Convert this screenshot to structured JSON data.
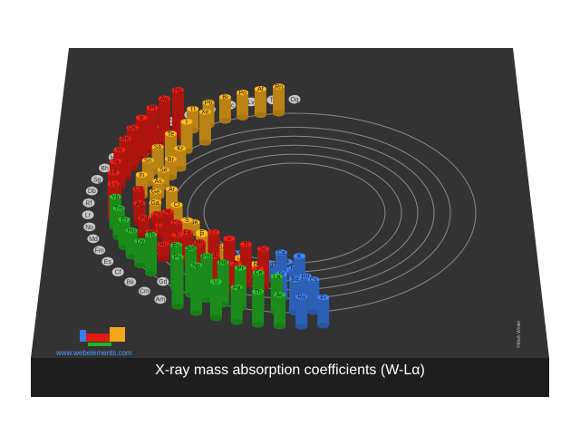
{
  "title": "X-ray mass absorption coefficients (W-Lα)",
  "site_url": "www.webelements.com",
  "copyright": "©Mark Winter",
  "chart_data": {
    "type": "bar",
    "note_units": "relative bar height 0-1 (no axis printed)",
    "colors": {
      "s": "#3a7be8",
      "p": "#f0a81a",
      "d": "#e01b12",
      "f": "#22b322",
      "empty": "#c8c8c8",
      "board": "#333333"
    },
    "elements": [
      {
        "symbol": "H",
        "block": "s",
        "value": 0.02
      },
      {
        "symbol": "He",
        "block": "s",
        "value": 0.03
      },
      {
        "symbol": "Li",
        "block": "s",
        "value": 0.04
      },
      {
        "symbol": "Be",
        "block": "s",
        "value": 0.05
      },
      {
        "symbol": "B",
        "block": "p",
        "value": 0.07
      },
      {
        "symbol": "C",
        "block": "p",
        "value": 0.1
      },
      {
        "symbol": "N",
        "block": "p",
        "value": 0.12
      },
      {
        "symbol": "O",
        "block": "p",
        "value": 0.15
      },
      {
        "symbol": "F",
        "block": "p",
        "value": 0.18
      },
      {
        "symbol": "Ne",
        "block": "p",
        "value": 0.2
      },
      {
        "symbol": "Na",
        "block": "s",
        "value": 0.24
      },
      {
        "symbol": "Mg",
        "block": "s",
        "value": 0.28
      },
      {
        "symbol": "Al",
        "block": "p",
        "value": 0.33
      },
      {
        "symbol": "Si",
        "block": "p",
        "value": 0.38
      },
      {
        "symbol": "P",
        "block": "p",
        "value": 0.43
      },
      {
        "symbol": "S",
        "block": "p",
        "value": 0.48
      },
      {
        "symbol": "Cl",
        "block": "p",
        "value": 0.52
      },
      {
        "symbol": "Ar",
        "block": "p",
        "value": 0.55
      },
      {
        "symbol": "K",
        "block": "s",
        "value": 0.62
      },
      {
        "symbol": "Ca",
        "block": "s",
        "value": 0.68
      },
      {
        "symbol": "Sc",
        "block": "d",
        "value": 0.72
      },
      {
        "symbol": "Ti",
        "block": "d",
        "value": 0.75
      },
      {
        "symbol": "V",
        "block": "d",
        "value": 0.78
      },
      {
        "symbol": "Cr",
        "block": "d",
        "value": 0.8
      },
      {
        "symbol": "Mn",
        "block": "d",
        "value": 0.5
      },
      {
        "symbol": "Fe",
        "block": "d",
        "value": 0.55
      },
      {
        "symbol": "Co",
        "block": "d",
        "value": 0.58
      },
      {
        "symbol": "Ni",
        "block": "d",
        "value": 0.62
      },
      {
        "symbol": "Cu",
        "block": "d",
        "value": 0.2
      },
      {
        "symbol": "Zn",
        "block": "d",
        "value": 0.22
      },
      {
        "symbol": "Ga",
        "block": "p",
        "value": 0.25
      },
      {
        "symbol": "Ge",
        "block": "p",
        "value": 0.27
      },
      {
        "symbol": "As",
        "block": "p",
        "value": 0.28
      },
      {
        "symbol": "Se",
        "block": "p",
        "value": 0.31
      },
      {
        "symbol": "Br",
        "block": "p",
        "value": 0.34
      },
      {
        "symbol": "Kr",
        "block": "p",
        "value": 0.38
      },
      {
        "symbol": "Rb",
        "block": "s",
        "value": 0.42
      },
      {
        "symbol": "Sr",
        "block": "s",
        "value": 0.45
      },
      {
        "symbol": "Y",
        "block": "d",
        "value": 0.5
      },
      {
        "symbol": "Zr",
        "block": "d",
        "value": 0.53
      },
      {
        "symbol": "Nb",
        "block": "d",
        "value": 0.57
      },
      {
        "symbol": "Mo",
        "block": "d",
        "value": 0.6
      },
      {
        "symbol": "Tc",
        "block": "d",
        "value": 0.64
      },
      {
        "symbol": "Ru",
        "block": "d",
        "value": 0.28
      },
      {
        "symbol": "Rh",
        "block": "d",
        "value": 0.3
      },
      {
        "symbol": "Pd",
        "block": "d",
        "value": 0.32
      },
      {
        "symbol": "Ag",
        "block": "d",
        "value": 0.35
      },
      {
        "symbol": "Cd",
        "block": "d",
        "value": 0.38
      },
      {
        "symbol": "In",
        "block": "p",
        "value": 0.4
      },
      {
        "symbol": "Sn",
        "block": "p",
        "value": 0.43
      },
      {
        "symbol": "Sb",
        "block": "p",
        "value": 0.46
      },
      {
        "symbol": "Te",
        "block": "p",
        "value": 0.5
      },
      {
        "symbol": "I",
        "block": "p",
        "value": 0.54
      },
      {
        "symbol": "Xe",
        "block": "p",
        "value": 0.57
      },
      {
        "symbol": "Cs",
        "block": "s",
        "value": 0.6
      },
      {
        "symbol": "Ba",
        "block": "s",
        "value": 0.62
      },
      {
        "symbol": "La",
        "block": "f",
        "value": 0.66
      },
      {
        "symbol": "Ce",
        "block": "f",
        "value": 0.7
      },
      {
        "symbol": "Pr",
        "block": "f",
        "value": 0.74
      },
      {
        "symbol": "Nd",
        "block": "f",
        "value": 0.78
      },
      {
        "symbol": "Pm",
        "block": "f",
        "value": 0.82
      },
      {
        "symbol": "Sm",
        "block": "f",
        "value": 0.86
      },
      {
        "symbol": "Eu",
        "block": "f",
        "value": 0.8
      },
      {
        "symbol": "Gd",
        "block": "f",
        "value": 0.0
      },
      {
        "symbol": "Tb",
        "block": "f",
        "value": 0.72
      },
      {
        "symbol": "Dy",
        "block": "f",
        "value": 0.45
      },
      {
        "symbol": "Ho",
        "block": "f",
        "value": 0.48
      },
      {
        "symbol": "Er",
        "block": "f",
        "value": 0.51
      },
      {
        "symbol": "Tm",
        "block": "f",
        "value": 0.54
      },
      {
        "symbol": "Yb",
        "block": "f",
        "value": 0.57
      },
      {
        "symbol": "Lu",
        "block": "d",
        "value": 0.62
      },
      {
        "symbol": "Hf",
        "block": "d",
        "value": 0.64
      },
      {
        "symbol": "Ta",
        "block": "d",
        "value": 0.66
      },
      {
        "symbol": "W",
        "block": "d",
        "value": 0.69
      },
      {
        "symbol": "Re",
        "block": "d",
        "value": 0.72
      },
      {
        "symbol": "Os",
        "block": "d",
        "value": 0.75
      },
      {
        "symbol": "Ir",
        "block": "d",
        "value": 0.77
      },
      {
        "symbol": "Pt",
        "block": "d",
        "value": 0.8
      },
      {
        "symbol": "Au",
        "block": "d",
        "value": 0.83
      },
      {
        "symbol": "Hg",
        "block": "d",
        "value": 0.86
      },
      {
        "symbol": "Tl",
        "block": "p",
        "value": 0.4
      },
      {
        "symbol": "Pb",
        "block": "p",
        "value": 0.42
      },
      {
        "symbol": "Bi",
        "block": "p",
        "value": 0.44
      },
      {
        "symbol": "Po",
        "block": "p",
        "value": 0.46
      },
      {
        "symbol": "At",
        "block": "p",
        "value": 0.48
      },
      {
        "symbol": "Rn",
        "block": "p",
        "value": 0.5
      },
      {
        "symbol": "Fr",
        "block": "s",
        "value": 0.52
      },
      {
        "symbol": "Ra",
        "block": "s",
        "value": 0.55
      },
      {
        "symbol": "Ac",
        "block": "f",
        "value": 0.58
      },
      {
        "symbol": "Th",
        "block": "f",
        "value": 0.61
      },
      {
        "symbol": "Pa",
        "block": "f",
        "value": 0.64
      },
      {
        "symbol": "U",
        "block": "f",
        "value": 0.67
      },
      {
        "symbol": "Np",
        "block": "f",
        "value": 0.88
      },
      {
        "symbol": "Pu",
        "block": "f",
        "value": 0.92
      },
      {
        "symbol": "Am",
        "block": "f",
        "value": 0.0
      },
      {
        "symbol": "Cm",
        "block": "f",
        "value": 0.0
      },
      {
        "symbol": "Bk",
        "block": "f",
        "value": 0.0
      },
      {
        "symbol": "Cf",
        "block": "f",
        "value": 0.0
      },
      {
        "symbol": "Es",
        "block": "f",
        "value": 0.0
      },
      {
        "symbol": "Fm",
        "block": "f",
        "value": 0.0
      },
      {
        "symbol": "Md",
        "block": "f",
        "value": 0.0
      },
      {
        "symbol": "No",
        "block": "f",
        "value": 0.0
      },
      {
        "symbol": "Lr",
        "block": "d",
        "value": 0.0
      },
      {
        "symbol": "Rf",
        "block": "d",
        "value": 0.0
      },
      {
        "symbol": "Db",
        "block": "d",
        "value": 0.0
      },
      {
        "symbol": "Sg",
        "block": "d",
        "value": 0.0
      },
      {
        "symbol": "Bh",
        "block": "d",
        "value": 0.0
      },
      {
        "symbol": "Hs",
        "block": "d",
        "value": 0.0
      },
      {
        "symbol": "Mt",
        "block": "d",
        "value": 0.0
      },
      {
        "symbol": "Ds",
        "block": "d",
        "value": 0.0
      },
      {
        "symbol": "Rg",
        "block": "d",
        "value": 0.0
      },
      {
        "symbol": "Cn",
        "block": "d",
        "value": 0.0
      },
      {
        "symbol": "Nh",
        "block": "p",
        "value": 0.0
      },
      {
        "symbol": "Fl",
        "block": "p",
        "value": 0.0
      },
      {
        "symbol": "Mc",
        "block": "p",
        "value": 0.0
      },
      {
        "symbol": "Lv",
        "block": "p",
        "value": 0.0
      },
      {
        "symbol": "Ts",
        "block": "p",
        "value": 0.0
      },
      {
        "symbol": "Og",
        "block": "p",
        "value": 0.0
      }
    ]
  }
}
